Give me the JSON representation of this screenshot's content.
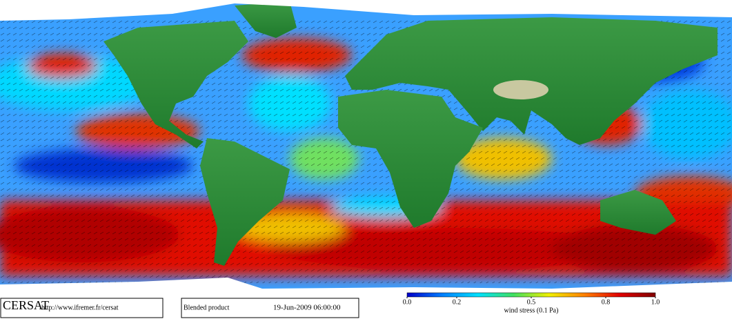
{
  "footer": {
    "logo": "CERSAT",
    "url": "http://www.ifremer.fr/cersat",
    "product": "Blended product",
    "date": "19-Jun-2009 06:00:00"
  },
  "colorbar": {
    "label": "wind stress (0.1 Pa)",
    "range": [
      0,
      1
    ],
    "ticks": [
      {
        "value": 0,
        "label": "0.0"
      },
      0.2,
      0.5,
      0.8,
      {
        "value": 1,
        "label": "1.0"
      }
    ],
    "colors": [
      "#0000c8",
      "#0080ff",
      "#00e0ff",
      "#40e060",
      "#f0f000",
      "#ff8000",
      "#e00000",
      "#800000"
    ]
  }
}
